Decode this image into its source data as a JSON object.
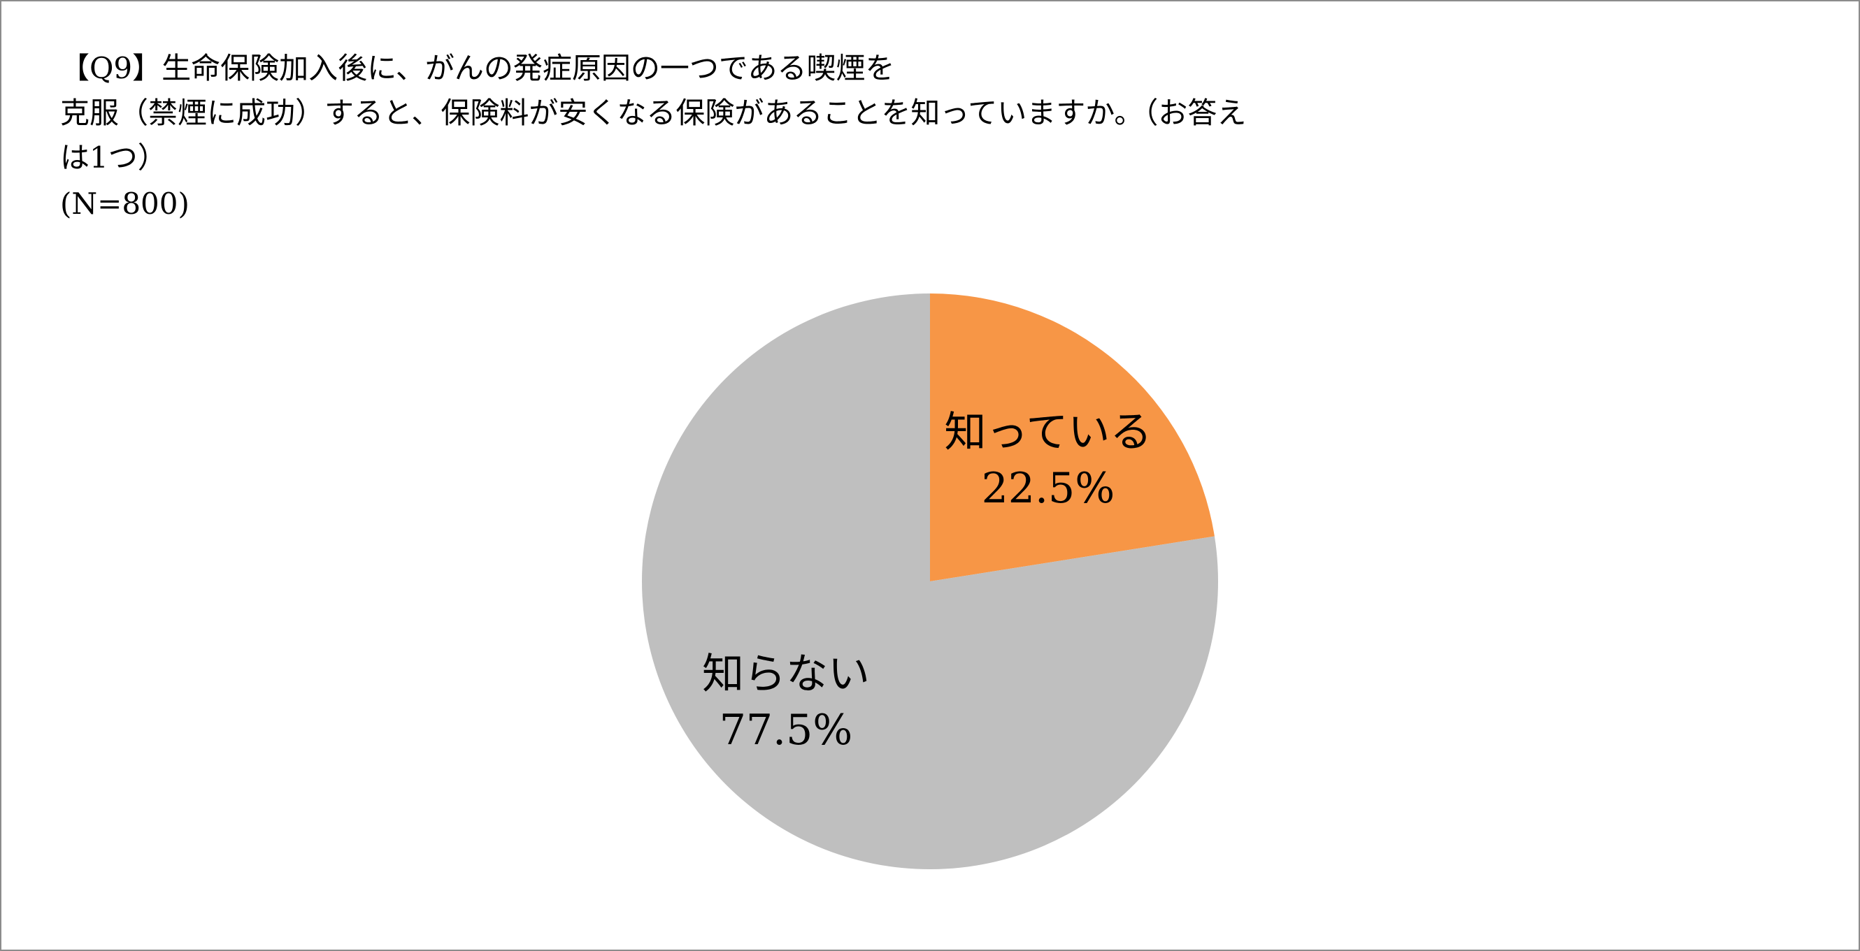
{
  "chart_data": {
    "type": "pie",
    "title_lines": [
      "【Q9】生命保険加入後に、がんの発症原因の一つである喫煙を",
      "克服（禁煙に成功）すると、保険料が安くなる保険があることを知っていますか。（お答え",
      "は1つ）"
    ],
    "sample_size": "(N=800)",
    "start_angle_deg": 0,
    "direction": "clockwise",
    "slices": [
      {
        "label": "知っている",
        "value": 22.5,
        "value_label": "22.5%",
        "color": "#F79646"
      },
      {
        "label": "知らない",
        "value": 77.5,
        "value_label": "77.5%",
        "color": "#BFBFBF"
      }
    ]
  }
}
